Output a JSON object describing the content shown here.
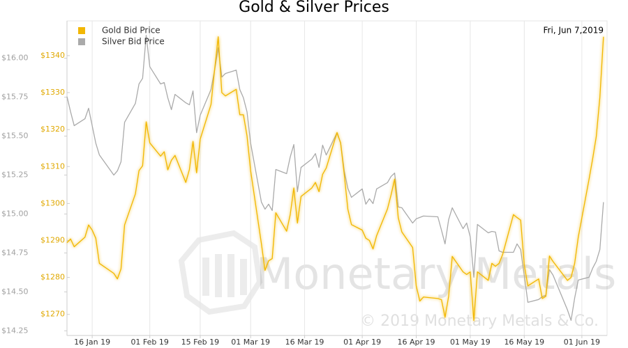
{
  "chart_data": {
    "type": "line",
    "title": "Gold & Silver Prices",
    "date_label": "Fri, Jun 7,2019",
    "watermark": "Monetary Metals",
    "copyright": "© 2019 Monetary Metals & Co.",
    "legend": "upper left",
    "grid": true,
    "xlim": [
      "2019-01-09",
      "2019-06-08"
    ],
    "xticks": [
      {
        "value": "2019-01-16",
        "label": "16 Jan 19"
      },
      {
        "value": "2019-02-01",
        "label": "01 Feb 19"
      },
      {
        "value": "2019-02-15",
        "label": "15 Feb 19"
      },
      {
        "value": "2019-03-01",
        "label": "01 Mar 19"
      },
      {
        "value": "2019-03-16",
        "label": "16 Mar 19"
      },
      {
        "value": "2019-04-01",
        "label": "01 Apr 19"
      },
      {
        "value": "2019-04-16",
        "label": "16 Apr 19"
      },
      {
        "value": "2019-05-01",
        "label": "01 May 19"
      },
      {
        "value": "2019-05-16",
        "label": "16 May 19"
      },
      {
        "value": "2019-06-01",
        "label": "01 Jun 19"
      }
    ],
    "ylim": [
      14.22,
      16.24
    ],
    "yticks": [
      {
        "value": 14.25,
        "label": "$14.25"
      },
      {
        "value": 14.5,
        "label": "$14.50"
      },
      {
        "value": 14.75,
        "label": "$14.75"
      },
      {
        "value": 15,
        "label": "$15.00"
      },
      {
        "value": 15.25,
        "label": "$15.25"
      },
      {
        "value": 15.5,
        "label": "$15.50"
      },
      {
        "value": 15.75,
        "label": "$15.75"
      },
      {
        "value": 16,
        "label": "$16.00"
      }
    ],
    "y2lim": [
      1264.3,
      1349.4
    ],
    "y2ticks": [
      {
        "value": 1270,
        "label": "$1270"
      },
      {
        "value": 1280,
        "label": "$1280"
      },
      {
        "value": 1290,
        "label": "$1290"
      },
      {
        "value": 1300,
        "label": "$1300"
      },
      {
        "value": 1310,
        "label": "$1310"
      },
      {
        "value": 1320,
        "label": "$1320"
      },
      {
        "value": 1330,
        "label": "$1330"
      },
      {
        "value": 1340,
        "label": "$1340"
      }
    ],
    "x": [
      "2019-01-09",
      "2019-01-10",
      "2019-01-11",
      "2019-01-14",
      "2019-01-15",
      "2019-01-16",
      "2019-01-17",
      "2019-01-18",
      "2019-01-22",
      "2019-01-23",
      "2019-01-24",
      "2019-01-25",
      "2019-01-28",
      "2019-01-29",
      "2019-01-30",
      "2019-01-31",
      "2019-02-01",
      "2019-02-04",
      "2019-02-05",
      "2019-02-06",
      "2019-02-07",
      "2019-02-08",
      "2019-02-11",
      "2019-02-12",
      "2019-02-13",
      "2019-02-14",
      "2019-02-15",
      "2019-02-18",
      "2019-02-19",
      "2019-02-20",
      "2019-02-21",
      "2019-02-22",
      "2019-02-25",
      "2019-02-26",
      "2019-02-27",
      "2019-02-28",
      "2019-03-01",
      "2019-03-04",
      "2019-03-05",
      "2019-03-06",
      "2019-03-07",
      "2019-03-08",
      "2019-03-11",
      "2019-03-12",
      "2019-03-13",
      "2019-03-14",
      "2019-03-15",
      "2019-03-18",
      "2019-03-19",
      "2019-03-20",
      "2019-03-21",
      "2019-03-22",
      "2019-03-25",
      "2019-03-26",
      "2019-03-27",
      "2019-03-28",
      "2019-03-29",
      "2019-04-01",
      "2019-04-02",
      "2019-04-03",
      "2019-04-04",
      "2019-04-05",
      "2019-04-08",
      "2019-04-09",
      "2019-04-10",
      "2019-04-11",
      "2019-04-12",
      "2019-04-15",
      "2019-04-16",
      "2019-04-17",
      "2019-04-18",
      "2019-04-22",
      "2019-04-23",
      "2019-04-24",
      "2019-04-25",
      "2019-04-26",
      "2019-04-29",
      "2019-04-30",
      "2019-05-01",
      "2019-05-02",
      "2019-05-03",
      "2019-05-06",
      "2019-05-07",
      "2019-05-08",
      "2019-05-09",
      "2019-05-10",
      "2019-05-13",
      "2019-05-14",
      "2019-05-15",
      "2019-05-16",
      "2019-05-17",
      "2019-05-20",
      "2019-05-21",
      "2019-05-22",
      "2019-05-23",
      "2019-05-24",
      "2019-05-28",
      "2019-05-29",
      "2019-05-30",
      "2019-05-31",
      "2019-06-03",
      "2019-06-04",
      "2019-06-05",
      "2019-06-06",
      "2019-06-07"
    ],
    "series": [
      {
        "name": "Gold Bid Price",
        "color": "#f2b705",
        "axis": "y2",
        "values": [
          1289.4,
          1290.4,
          1288.3,
          1290.9,
          1294.2,
          1292.8,
          1290.6,
          1283.8,
          1281.1,
          1279.6,
          1282.3,
          1294.2,
          1302.6,
          1308.9,
          1310.2,
          1322.1,
          1316.4,
          1312.8,
          1314.0,
          1309.1,
          1311.7,
          1313.0,
          1305.7,
          1309.2,
          1316.8,
          1308.3,
          1317.4,
          1326.8,
          1336.2,
          1345.1,
          1330.0,
          1329.1,
          1330.9,
          1324.0,
          1324.0,
          1318.3,
          1308.9,
          1289.1,
          1281.9,
          1284.5,
          1285.1,
          1297.5,
          1292.5,
          1297.0,
          1304.2,
          1294.7,
          1301.9,
          1304.2,
          1305.7,
          1303.2,
          1307.9,
          1309.6,
          1319.2,
          1316.4,
          1307.9,
          1298.5,
          1294.3,
          1292.8,
          1290.6,
          1290.0,
          1287.7,
          1291.3,
          1298.5,
          1302.3,
          1306.6,
          1296.2,
          1292.3,
          1288.1,
          1277.7,
          1273.6,
          1274.7,
          1274.3,
          1274.0,
          1269.2,
          1274.9,
          1285.7,
          1281.5,
          1280.8,
          1281.5,
          1268.3,
          1281.5,
          1279.2,
          1283.8,
          1283.0,
          1283.8,
          1286.2,
          1297.0,
          1296.2,
          1295.5,
          1283.4,
          1277.7,
          1279.6,
          1274.3,
          1274.9,
          1285.8,
          1284.3,
          1279.2,
          1280.0,
          1283.8,
          1290.9,
          1306.6,
          1312.1,
          1318.1,
          1328.7,
          1345.1
        ]
      },
      {
        "name": "Silver Bid Price",
        "color": "#aaaaaa",
        "values": [
          15.754,
          15.656,
          15.567,
          15.612,
          15.679,
          15.567,
          15.455,
          15.379,
          15.25,
          15.277,
          15.335,
          15.589,
          15.71,
          15.835,
          15.871,
          16.147,
          15.946,
          15.835,
          15.844,
          15.746,
          15.67,
          15.768,
          15.714,
          15.701,
          15.79,
          15.522,
          15.634,
          15.799,
          15.924,
          16.067,
          15.879,
          15.902,
          15.924,
          15.799,
          15.746,
          15.656,
          15.455,
          15.076,
          15.031,
          15.063,
          15.022,
          15.286,
          15.259,
          15.366,
          15.446,
          15.143,
          15.299,
          15.353,
          15.388,
          15.299,
          15.442,
          15.379,
          15.522,
          15.455,
          15.277,
          15.165,
          15.107,
          15.161,
          15.063,
          15.098,
          15.067,
          15.161,
          15.201,
          15.241,
          15.263,
          15.045,
          15.04,
          14.942,
          14.969,
          14.978,
          14.987,
          14.982,
          14.897,
          14.808,
          14.964,
          15.04,
          14.906,
          14.942,
          14.853,
          14.594,
          14.933,
          14.879,
          14.888,
          14.884,
          14.763,
          14.754,
          14.754,
          14.808,
          14.772,
          14.607,
          14.433,
          14.451,
          14.469,
          14.478,
          14.643,
          14.607,
          14.384,
          14.317,
          14.46,
          14.576,
          14.594,
          14.652,
          14.696,
          14.772,
          15.076
        ]
      }
    ]
  }
}
